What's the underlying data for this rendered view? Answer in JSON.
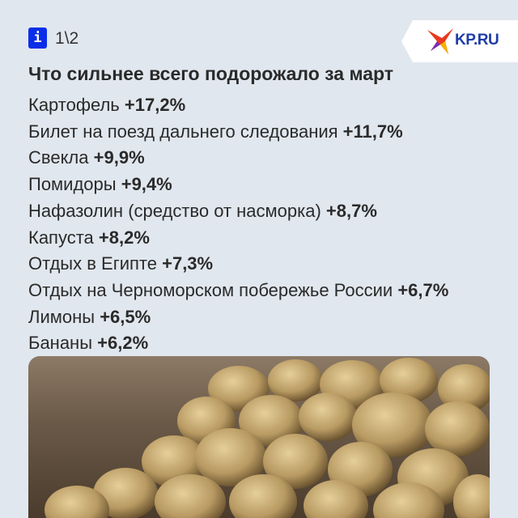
{
  "header": {
    "info_icon": "info-icon",
    "page_indicator": "1\\2",
    "logo_text": "KP.RU"
  },
  "title": "Что сильнее всего подорожало за март",
  "items": [
    {
      "name": "Картофель",
      "change": "+17,2%"
    },
    {
      "name": "Билет на поезд дальнего следования",
      "change": "+11,7%"
    },
    {
      "name": "Свекла",
      "change": "+9,9%"
    },
    {
      "name": "Помидоры",
      "change": "+9,4%"
    },
    {
      "name": "Нафазолин (средство от насморка)",
      "change": "+8,7%"
    },
    {
      "name": "Капуста",
      "change": "+8,2%"
    },
    {
      "name": "Отдых в Египте",
      "change": "+7,3%"
    },
    {
      "name": "Отдых на Черноморском побережье России",
      "change": "+6,7%"
    },
    {
      "name": "Лимоны",
      "change": "+6,5%"
    },
    {
      "name": "Бананы",
      "change": "+6,2%"
    }
  ],
  "colors": {
    "background": "#e1e7ee",
    "info_badge": "#0a2ee8",
    "logo_text": "#1f3da6"
  }
}
